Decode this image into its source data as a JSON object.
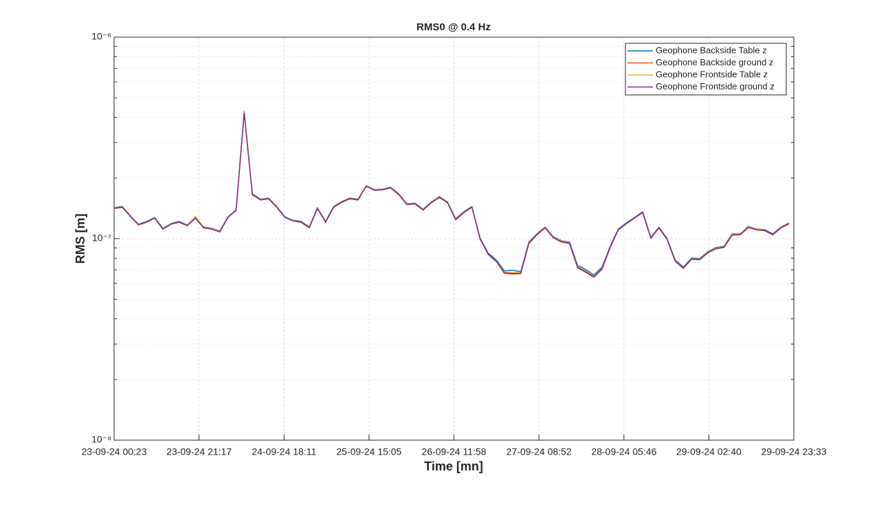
{
  "chart_data": {
    "type": "line",
    "title": "RMS0 @ 0.4 Hz",
    "xlabel": "Time [mn]",
    "ylabel": "RMS [m]",
    "yscale": "log",
    "grid": true,
    "minor_grid": true,
    "legend": "upper right",
    "xlim": [
      0,
      10030
    ],
    "xticks": [
      {
        "value": 0,
        "label": "23-09-24 00:23"
      },
      {
        "value": 1254,
        "label": "23-09-24 21:17"
      },
      {
        "value": 2508,
        "label": "24-09-24 18:11"
      },
      {
        "value": 3761,
        "label": "25-09-24 15:05"
      },
      {
        "value": 5015,
        "label": "26-09-24 11:58"
      },
      {
        "value": 6269,
        "label": "27-09-24 08:52"
      },
      {
        "value": 7523,
        "label": "28-09-24 05:46"
      },
      {
        "value": 8776,
        "label": "29-09-24 02:40"
      },
      {
        "value": 10030,
        "label": "29-09-24 23:33"
      }
    ],
    "ylim": [
      1e-08,
      1e-06
    ],
    "yticks": [
      {
        "value": 1e-08,
        "label": "10⁻⁸"
      },
      {
        "value": 1e-07,
        "label": "10⁻⁷"
      },
      {
        "value": 1e-06,
        "label": "10⁻⁶"
      }
    ],
    "x": [
      0,
      120,
      240,
      360,
      480,
      600,
      720,
      840,
      960,
      1080,
      1200,
      1320,
      1440,
      1560,
      1680,
      1800,
      1920,
      2040,
      2160,
      2280,
      2400,
      2520,
      2640,
      2760,
      2880,
      3000,
      3120,
      3240,
      3360,
      3480,
      3600,
      3720,
      3840,
      3960,
      4080,
      4200,
      4320,
      4440,
      4560,
      4680,
      4800,
      4920,
      5040,
      5160,
      5280,
      5400,
      5520,
      5640,
      5760,
      5880,
      6000,
      6120,
      6240,
      6360,
      6480,
      6600,
      6720,
      6840,
      6960,
      7080,
      7200,
      7320,
      7440,
      7560,
      7680,
      7800,
      7920,
      8040,
      8160,
      8280,
      8400,
      8520,
      8640,
      8760,
      8880,
      9000,
      9120,
      9240,
      9360,
      9480,
      9600,
      9720,
      9840,
      9960
    ],
    "series": [
      {
        "name": "Geophone Backside Table z",
        "color": "#0072BD",
        "values": [
          1.425e-07,
          1.445e-07,
          1.3e-07,
          1.18e-07,
          1.217e-07,
          1.275e-07,
          1.125e-07,
          1.19e-07,
          1.217e-07,
          1.17e-07,
          1.275e-07,
          1.143e-07,
          1.125e-07,
          1.09e-07,
          1.285e-07,
          1.39e-07,
          4.28e-07,
          1.67e-07,
          1.57e-07,
          1.59e-07,
          1.445e-07,
          1.285e-07,
          1.235e-07,
          1.217e-07,
          1.143e-07,
          1.425e-07,
          1.217e-07,
          1.445e-07,
          1.53e-07,
          1.59e-07,
          1.57e-07,
          1.83e-07,
          1.75e-07,
          1.76e-07,
          1.8e-07,
          1.67e-07,
          1.49e-07,
          1.5e-07,
          1.4e-07,
          1.52e-07,
          1.62e-07,
          1.52e-07,
          1.255e-07,
          1.36e-07,
          1.445e-07,
          1.007e-07,
          8.48e-08,
          7.84e-08,
          6.92e-08,
          6.97e-08,
          6.86e-08,
          9.62e-08,
          1.057e-07,
          1.143e-07,
          1.023e-07,
          9.77e-08,
          9.62e-08,
          7.36e-08,
          7.02e-08,
          6.6e-08,
          7.24e-08,
          9.17e-08,
          1.117e-07,
          1.198e-07,
          1.275e-07,
          1.36e-07,
          1.016e-07,
          1.143e-07,
          1e-07,
          7.84e-08,
          7.24e-08,
          8.02e-08,
          7.96e-08,
          8.62e-08,
          9.03e-08,
          9.17e-08,
          1.057e-07,
          1.057e-07,
          1.15e-07,
          1.117e-07,
          1.107e-07,
          1.057e-07,
          1.143e-07,
          1.198e-07
        ]
      },
      {
        "name": "Geophone Backside ground z",
        "color": "#D95319",
        "values": [
          1.41e-07,
          1.43e-07,
          1.29e-07,
          1.17e-07,
          1.205e-07,
          1.265e-07,
          1.115e-07,
          1.18e-07,
          1.205e-07,
          1.16e-07,
          1.265e-07,
          1.13e-07,
          1.115e-07,
          1.08e-07,
          1.275e-07,
          1.38e-07,
          4.25e-07,
          1.65e-07,
          1.555e-07,
          1.575e-07,
          1.43e-07,
          1.275e-07,
          1.225e-07,
          1.205e-07,
          1.13e-07,
          1.41e-07,
          1.205e-07,
          1.43e-07,
          1.515e-07,
          1.575e-07,
          1.555e-07,
          1.82e-07,
          1.735e-07,
          1.745e-07,
          1.785e-07,
          1.655e-07,
          1.475e-07,
          1.485e-07,
          1.385e-07,
          1.505e-07,
          1.6e-07,
          1.505e-07,
          1.24e-07,
          1.345e-07,
          1.43e-07,
          9.95e-08,
          8.35e-08,
          7.7e-08,
          6.72e-08,
          6.68e-08,
          6.7e-08,
          9.45e-08,
          1.045e-07,
          1.13e-07,
          1.01e-07,
          9.62e-08,
          9.45e-08,
          7.16e-08,
          6.8e-08,
          6.43e-08,
          7.05e-08,
          9.03e-08,
          1.105e-07,
          1.185e-07,
          1.265e-07,
          1.345e-07,
          1.003e-07,
          1.13e-07,
          9.9e-08,
          7.7e-08,
          7.12e-08,
          7.9e-08,
          7.85e-08,
          8.5e-08,
          8.9e-08,
          9.05e-08,
          1.04e-07,
          1.045e-07,
          1.135e-07,
          1.105e-07,
          1.095e-07,
          1.045e-07,
          1.13e-07,
          1.185e-07
        ]
      },
      {
        "name": "Geophone Frontside Table z",
        "color": "#EDB120",
        "values": [
          1.42e-07,
          1.44e-07,
          1.295e-07,
          1.175e-07,
          1.21e-07,
          1.27e-07,
          1.12e-07,
          1.185e-07,
          1.21e-07,
          1.165e-07,
          1.29e-07,
          1.14e-07,
          1.12e-07,
          1.085e-07,
          1.28e-07,
          1.385e-07,
          4.26e-07,
          1.66e-07,
          1.565e-07,
          1.585e-07,
          1.44e-07,
          1.28e-07,
          1.23e-07,
          1.21e-07,
          1.14e-07,
          1.42e-07,
          1.21e-07,
          1.44e-07,
          1.525e-07,
          1.585e-07,
          1.565e-07,
          1.825e-07,
          1.745e-07,
          1.755e-07,
          1.795e-07,
          1.665e-07,
          1.485e-07,
          1.495e-07,
          1.395e-07,
          1.515e-07,
          1.615e-07,
          1.515e-07,
          1.25e-07,
          1.355e-07,
          1.44e-07,
          1e-07,
          8.4e-08,
          7.75e-08,
          6.8e-08,
          6.8e-08,
          6.78e-08,
          9.55e-08,
          1.05e-07,
          1.14e-07,
          1.018e-07,
          9.72e-08,
          9.55e-08,
          7.25e-08,
          6.9e-08,
          6.5e-08,
          7.15e-08,
          9.1e-08,
          1.11e-07,
          1.19e-07,
          1.27e-07,
          1.355e-07,
          1.01e-07,
          1.14e-07,
          9.95e-08,
          7.78e-08,
          7.18e-08,
          7.95e-08,
          7.9e-08,
          8.58e-08,
          8.98e-08,
          9.12e-08,
          1.05e-07,
          1.06e-07,
          1.145e-07,
          1.12e-07,
          1.1e-07,
          1.05e-07,
          1.14e-07,
          1.195e-07
        ]
      },
      {
        "name": "Geophone Frontside ground z",
        "color": "#7E2F8E",
        "values": [
          1.415e-07,
          1.435e-07,
          1.29e-07,
          1.17e-07,
          1.21e-07,
          1.265e-07,
          1.115e-07,
          1.18e-07,
          1.21e-07,
          1.16e-07,
          1.265e-07,
          1.135e-07,
          1.115e-07,
          1.08e-07,
          1.275e-07,
          1.38e-07,
          4.2e-07,
          1.655e-07,
          1.56e-07,
          1.58e-07,
          1.435e-07,
          1.275e-07,
          1.225e-07,
          1.21e-07,
          1.135e-07,
          1.415e-07,
          1.21e-07,
          1.435e-07,
          1.52e-07,
          1.58e-07,
          1.56e-07,
          1.82e-07,
          1.74e-07,
          1.75e-07,
          1.79e-07,
          1.66e-07,
          1.48e-07,
          1.49e-07,
          1.39e-07,
          1.51e-07,
          1.605e-07,
          1.51e-07,
          1.245e-07,
          1.35e-07,
          1.435e-07,
          9.98e-08,
          8.38e-08,
          7.72e-08,
          6.75e-08,
          6.72e-08,
          6.72e-08,
          9.5e-08,
          1.048e-07,
          1.135e-07,
          1.012e-07,
          9.65e-08,
          9.5e-08,
          7.2e-08,
          6.85e-08,
          6.46e-08,
          7.1e-08,
          9.06e-08,
          1.108e-07,
          1.188e-07,
          1.268e-07,
          1.35e-07,
          1.006e-07,
          1.135e-07,
          9.92e-08,
          7.73e-08,
          7.14e-08,
          7.92e-08,
          7.87e-08,
          8.53e-08,
          8.93e-08,
          9.08e-08,
          1.045e-07,
          1.05e-07,
          1.14e-07,
          1.11e-07,
          1.1e-07,
          1.048e-07,
          1.135e-07,
          1.19e-07
        ]
      }
    ]
  }
}
